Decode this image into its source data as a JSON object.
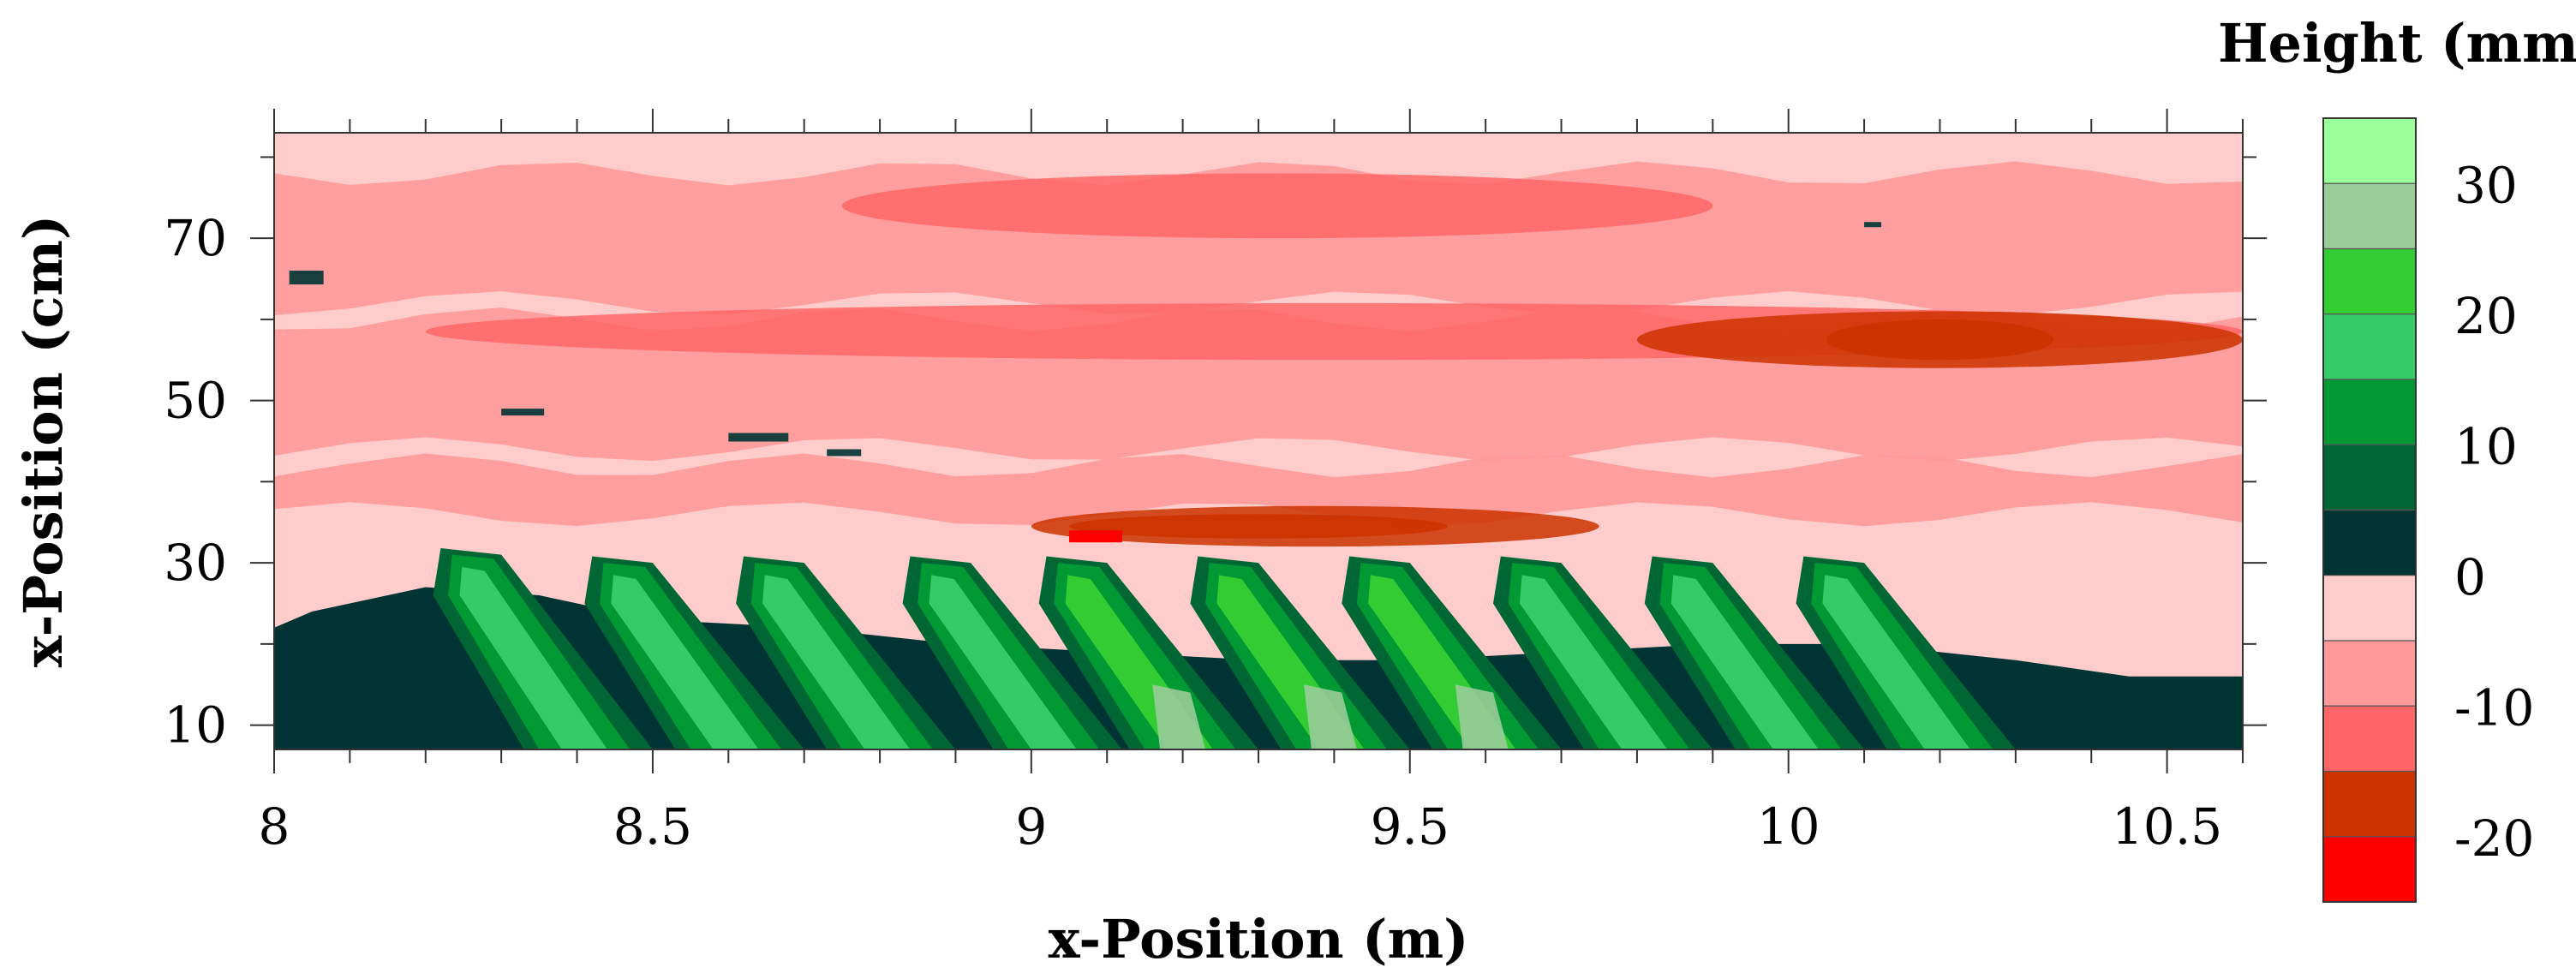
{
  "chart_data": {
    "type": "heatmap",
    "title": "",
    "xlabel": "x-Position (m)",
    "ylabel": "x-Position (cm)",
    "xlim": [
      8.0,
      10.6
    ],
    "ylim": [
      7,
      83
    ],
    "x_ticks": [
      "8",
      "8.5",
      "9",
      "9.5",
      "10",
      "10.5"
    ],
    "x_tick_values": [
      8.0,
      8.5,
      9.0,
      9.5,
      10.0,
      10.5
    ],
    "y_ticks": [
      "10",
      "30",
      "50",
      "70"
    ],
    "y_tick_values": [
      10,
      30,
      50,
      70
    ],
    "colorbar": {
      "title": "Height (mm)",
      "tick_labels": [
        "30",
        "20",
        "10",
        "0",
        "-10",
        "-20"
      ],
      "tick_values": [
        30,
        20,
        10,
        0,
        -10,
        -20
      ],
      "levels": [
        {
          "max": 35,
          "min": 30,
          "color": "#99ff99"
        },
        {
          "max": 30,
          "min": 25,
          "color": "#99cc99"
        },
        {
          "max": 25,
          "min": 20,
          "color": "#33cc33"
        },
        {
          "max": 20,
          "min": 15,
          "color": "#33cc66"
        },
        {
          "max": 15,
          "min": 10,
          "color": "#009933"
        },
        {
          "max": 10,
          "min": 5,
          "color": "#006633"
        },
        {
          "max": 5,
          "min": 0,
          "color": "#003333"
        },
        {
          "max": 0,
          "min": -5,
          "color": "#ffcccc"
        },
        {
          "max": -5,
          "min": -10,
          "color": "#ff9999"
        },
        {
          "max": -10,
          "min": -15,
          "color": "#ff6666"
        },
        {
          "max": -15,
          "min": -20,
          "color": "#cc3300"
        },
        {
          "max": -20,
          "min": -25,
          "color": "#ff0000"
        }
      ]
    },
    "bands": [
      {
        "y_from": 70,
        "y_to": 78,
        "height_mm": -10
      },
      {
        "y_from": 55,
        "y_to": 62,
        "height_mm": -10
      },
      {
        "y_from": 32,
        "y_to": 37,
        "height_mm": -15
      },
      {
        "y_from": 54,
        "y_to": 61,
        "height_mm": -15
      }
    ],
    "ripples": [
      {
        "x_crest": 8.26,
        "y_top": 31,
        "height_mm": 25
      },
      {
        "x_crest": 8.46,
        "y_top": 30,
        "height_mm": 25
      },
      {
        "x_crest": 8.66,
        "y_top": 30,
        "height_mm": 25
      },
      {
        "x_crest": 8.88,
        "y_top": 30,
        "height_mm": 25
      },
      {
        "x_crest": 9.06,
        "y_top": 30,
        "height_mm": 30
      },
      {
        "x_crest": 9.26,
        "y_top": 30,
        "height_mm": 30
      },
      {
        "x_crest": 9.46,
        "y_top": 30,
        "height_mm": 30
      },
      {
        "x_crest": 9.66,
        "y_top": 30,
        "height_mm": 25
      },
      {
        "x_crest": 9.86,
        "y_top": 30,
        "height_mm": 25
      },
      {
        "x_crest": 10.06,
        "y_top": 30,
        "height_mm": 25
      }
    ]
  }
}
